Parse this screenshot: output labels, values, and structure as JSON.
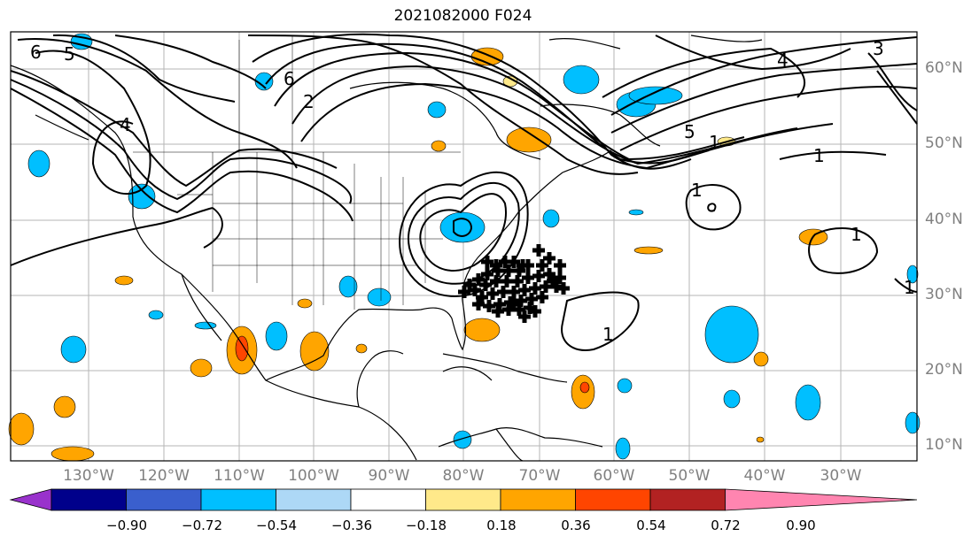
{
  "title": "2021082000 F024",
  "lon_labels": [
    "130°W",
    "120°W",
    "110°W",
    "100°W",
    "90°W",
    "80°W",
    "70°W",
    "60°W",
    "50°W",
    "40°W",
    "30°W"
  ],
  "lat_labels": [
    "60°N",
    "50°N",
    "40°N",
    "30°N",
    "20°N",
    "10°N"
  ],
  "contour_labels": [
    "6",
    "5",
    "4",
    "2",
    "6",
    "4",
    "3",
    "5",
    "1",
    "1",
    "1",
    "1",
    "1",
    "1"
  ],
  "colorbar": {
    "ticks": [
      "−0.90",
      "−0.72",
      "−0.54",
      "−0.36",
      "−0.18",
      "0.18",
      "0.36",
      "0.54",
      "0.72",
      "0.90"
    ],
    "colors": [
      "#9932cc",
      "#00008b",
      "#3a5fcd",
      "#00bfff",
      "#add8f6",
      "#ffffff",
      "#ffe98a",
      "#ffa500",
      "#ff4500",
      "#b22222",
      "#ff85b0"
    ]
  }
}
